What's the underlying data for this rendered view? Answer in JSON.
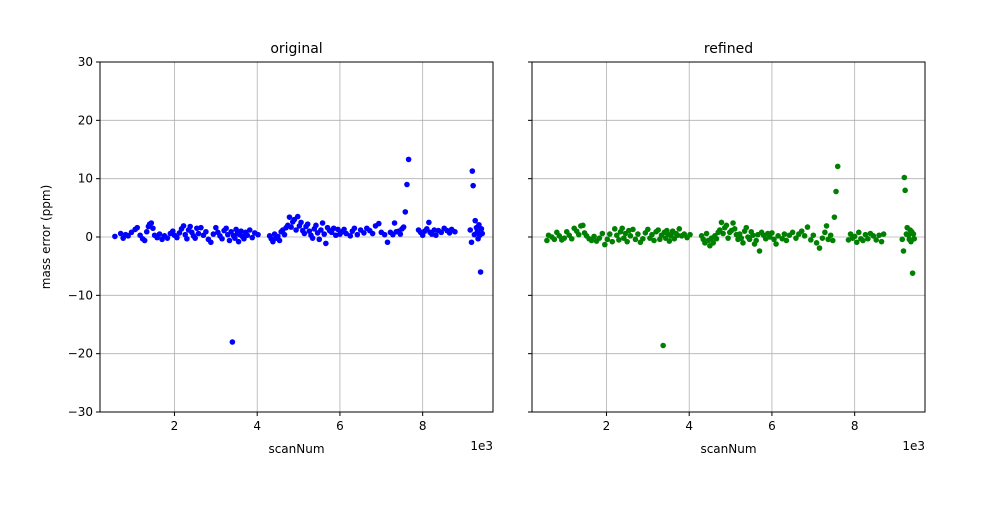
{
  "chart_data": [
    {
      "type": "scatter",
      "title": "original",
      "xlabel": "scanNum",
      "ylabel": "mass error (ppm)",
      "x_offset_text": "1e3",
      "xlim": [
        200,
        9700
      ],
      "ylim": [
        -30,
        30
      ],
      "xticks": [
        2000,
        4000,
        6000,
        8000
      ],
      "xtick_labels": [
        "2",
        "4",
        "6",
        "8"
      ],
      "yticks": [
        -30,
        -20,
        -10,
        0,
        10,
        20,
        30
      ],
      "ytick_labels": [
        "−30",
        "−20",
        "−10",
        "0",
        "10",
        "20",
        "30"
      ],
      "grid": true,
      "color": "#0000ff",
      "points": [
        [
          560,
          0.1
        ],
        [
          700,
          0.6
        ],
        [
          760,
          -0.2
        ],
        [
          820,
          0.4
        ],
        [
          880,
          0.2
        ],
        [
          960,
          0.8
        ],
        [
          1050,
          1.3
        ],
        [
          1100,
          1.6
        ],
        [
          1170,
          0.3
        ],
        [
          1230,
          -0.3
        ],
        [
          1280,
          -0.6
        ],
        [
          1330,
          0.9
        ],
        [
          1370,
          1.8
        ],
        [
          1400,
          2.2
        ],
        [
          1440,
          2.4
        ],
        [
          1480,
          1.5
        ],
        [
          1520,
          0.3
        ],
        [
          1580,
          -0.1
        ],
        [
          1640,
          0.5
        ],
        [
          1700,
          -0.4
        ],
        [
          1760,
          0.2
        ],
        [
          1830,
          -0.2
        ],
        [
          1900,
          0.6
        ],
        [
          1960,
          1.0
        ],
        [
          2000,
          0.3
        ],
        [
          2060,
          -0.1
        ],
        [
          2120,
          0.7
        ],
        [
          2170,
          1.4
        ],
        [
          2220,
          1.9
        ],
        [
          2260,
          0.4
        ],
        [
          2300,
          -0.3
        ],
        [
          2340,
          1.2
        ],
        [
          2380,
          1.8
        ],
        [
          2420,
          0.8
        ],
        [
          2460,
          0.2
        ],
        [
          2500,
          -0.2
        ],
        [
          2540,
          1.5
        ],
        [
          2580,
          0.6
        ],
        [
          2640,
          1.6
        ],
        [
          2700,
          0.3
        ],
        [
          2760,
          0.9
        ],
        [
          2820,
          -0.4
        ],
        [
          2880,
          -0.9
        ],
        [
          2940,
          0.5
        ],
        [
          3000,
          1.6
        ],
        [
          3050,
          0.8
        ],
        [
          3100,
          0.2
        ],
        [
          3150,
          -0.3
        ],
        [
          3200,
          1.1
        ],
        [
          3250,
          1.5
        ],
        [
          3290,
          0.4
        ],
        [
          3330,
          -0.6
        ],
        [
          3370,
          0.9
        ],
        [
          3400,
          -18
        ],
        [
          3430,
          0.2
        ],
        [
          3460,
          -0.2
        ],
        [
          3490,
          1.3
        ],
        [
          3520,
          0.6
        ],
        [
          3550,
          -0.8
        ],
        [
          3580,
          0.4
        ],
        [
          3610,
          1.0
        ],
        [
          3640,
          0.1
        ],
        [
          3680,
          -0.3
        ],
        [
          3720,
          0.8
        ],
        [
          3760,
          0.3
        ],
        [
          3820,
          1.2
        ],
        [
          3880,
          -0.1
        ],
        [
          3940,
          0.7
        ],
        [
          4020,
          0.4
        ],
        [
          4300,
          0.2
        ],
        [
          4340,
          -0.3
        ],
        [
          4380,
          -0.8
        ],
        [
          4420,
          0.5
        ],
        [
          4460,
          -0.2
        ],
        [
          4500,
          0.1
        ],
        [
          4540,
          -0.6
        ],
        [
          4580,
          0.9
        ],
        [
          4620,
          1.2
        ],
        [
          4660,
          0.4
        ],
        [
          4700,
          1.6
        ],
        [
          4740,
          2.0
        ],
        [
          4780,
          3.4
        ],
        [
          4820,
          1.7
        ],
        [
          4860,
          2.6
        ],
        [
          4900,
          3.0
        ],
        [
          4940,
          1.2
        ],
        [
          4980,
          3.5
        ],
        [
          5020,
          1.9
        ],
        [
          5060,
          2.5
        ],
        [
          5100,
          1.1
        ],
        [
          5140,
          0.6
        ],
        [
          5180,
          1.8
        ],
        [
          5220,
          2.2
        ],
        [
          5260,
          1.0
        ],
        [
          5300,
          0.3
        ],
        [
          5340,
          -0.2
        ],
        [
          5380,
          1.4
        ],
        [
          5420,
          2.0
        ],
        [
          5460,
          0.7
        ],
        [
          5500,
          -0.4
        ],
        [
          5540,
          1.2
        ],
        [
          5580,
          2.4
        ],
        [
          5620,
          0.5
        ],
        [
          5660,
          -1.1
        ],
        [
          5700,
          1.6
        ],
        [
          5750,
          1.1
        ],
        [
          5800,
          0.8
        ],
        [
          5850,
          1.5
        ],
        [
          5900,
          0.3
        ],
        [
          5950,
          1.3
        ],
        [
          6000,
          0.5
        ],
        [
          6050,
          0.9
        ],
        [
          6100,
          1.3
        ],
        [
          6150,
          0.6
        ],
        [
          6250,
          0.2
        ],
        [
          6300,
          1.0
        ],
        [
          6350,
          1.5
        ],
        [
          6420,
          0.4
        ],
        [
          6500,
          1.2
        ],
        [
          6580,
          0.7
        ],
        [
          6650,
          1.5
        ],
        [
          6720,
          1.1
        ],
        [
          6790,
          0.6
        ],
        [
          6860,
          1.9
        ],
        [
          6940,
          2.3
        ],
        [
          7000,
          0.8
        ],
        [
          7080,
          0.4
        ],
        [
          7150,
          -0.9
        ],
        [
          7220,
          0.8
        ],
        [
          7280,
          0.4
        ],
        [
          7320,
          2.4
        ],
        [
          7360,
          0.9
        ],
        [
          7420,
          1.0
        ],
        [
          7460,
          0.5
        ],
        [
          7500,
          1.4
        ],
        [
          7540,
          1.7
        ],
        [
          7580,
          4.3
        ],
        [
          7620,
          9.0
        ],
        [
          7660,
          13.3
        ],
        [
          7900,
          1.2
        ],
        [
          7950,
          0.8
        ],
        [
          8000,
          0.3
        ],
        [
          8050,
          1.0
        ],
        [
          8100,
          1.4
        ],
        [
          8150,
          2.5
        ],
        [
          8180,
          0.8
        ],
        [
          8220,
          0.5
        ],
        [
          8280,
          1.2
        ],
        [
          8320,
          0.3
        ],
        [
          8380,
          1.1
        ],
        [
          8450,
          0.8
        ],
        [
          8520,
          1.5
        ],
        [
          8590,
          1.1
        ],
        [
          8650,
          0.7
        ],
        [
          8700,
          1.3
        ],
        [
          8780,
          0.9
        ],
        [
          9150,
          1.2
        ],
        [
          9180,
          -0.9
        ],
        [
          9200,
          11.3
        ],
        [
          9220,
          8.8
        ],
        [
          9250,
          0.4
        ],
        [
          9270,
          2.8
        ],
        [
          9300,
          1.6
        ],
        [
          9320,
          0.9
        ],
        [
          9340,
          -0.3
        ],
        [
          9360,
          2.1
        ],
        [
          9380,
          0.3
        ],
        [
          9400,
          -6.0
        ],
        [
          9420,
          1.4
        ],
        [
          9440,
          0.6
        ]
      ]
    },
    {
      "type": "scatter",
      "title": "refined",
      "xlabel": "scanNum",
      "ylabel": "",
      "x_offset_text": "1e3",
      "xlim": [
        200,
        9700
      ],
      "ylim": [
        -30,
        30
      ],
      "xticks": [
        2000,
        4000,
        6000,
        8000
      ],
      "xtick_labels": [
        "2",
        "4",
        "6",
        "8"
      ],
      "yticks": [
        -30,
        -20,
        -10,
        0,
        10,
        20,
        30
      ],
      "ytick_labels": [],
      "grid": true,
      "color": "#008000",
      "points": [
        [
          560,
          -0.6
        ],
        [
          600,
          0.3
        ],
        [
          680,
          0.0
        ],
        [
          740,
          -0.4
        ],
        [
          800,
          0.8
        ],
        [
          860,
          0.2
        ],
        [
          920,
          -0.5
        ],
        [
          980,
          -0.2
        ],
        [
          1040,
          0.9
        ],
        [
          1100,
          0.3
        ],
        [
          1160,
          -0.3
        ],
        [
          1220,
          1.5
        ],
        [
          1280,
          1.0
        ],
        [
          1330,
          0.4
        ],
        [
          1380,
          1.9
        ],
        [
          1430,
          2.0
        ],
        [
          1470,
          0.7
        ],
        [
          1520,
          0.2
        ],
        [
          1580,
          -0.3
        ],
        [
          1640,
          -0.6
        ],
        [
          1700,
          0.1
        ],
        [
          1760,
          -0.7
        ],
        [
          1830,
          -0.2
        ],
        [
          1900,
          0.6
        ],
        [
          1960,
          -1.3
        ],
        [
          2020,
          -0.4
        ],
        [
          2080,
          0.5
        ],
        [
          2140,
          -0.8
        ],
        [
          2200,
          1.4
        ],
        [
          2250,
          0.3
        ],
        [
          2300,
          -0.5
        ],
        [
          2340,
          0.9
        ],
        [
          2380,
          1.5
        ],
        [
          2420,
          -0.2
        ],
        [
          2460,
          0.6
        ],
        [
          2500,
          -0.8
        ],
        [
          2540,
          1.1
        ],
        [
          2580,
          0.2
        ],
        [
          2640,
          1.3
        ],
        [
          2700,
          -0.4
        ],
        [
          2760,
          0.5
        ],
        [
          2820,
          -0.9
        ],
        [
          2880,
          -0.3
        ],
        [
          2940,
          0.7
        ],
        [
          3000,
          1.3
        ],
        [
          3050,
          -0.2
        ],
        [
          3100,
          0.4
        ],
        [
          3150,
          -0.6
        ],
        [
          3200,
          0.9
        ],
        [
          3250,
          1.2
        ],
        [
          3290,
          -0.4
        ],
        [
          3330,
          0.3
        ],
        [
          3370,
          -18.6
        ],
        [
          3400,
          0.8
        ],
        [
          3430,
          -0.2
        ],
        [
          3460,
          1.1
        ],
        [
          3490,
          0.5
        ],
        [
          3520,
          -0.7
        ],
        [
          3560,
          0.2
        ],
        [
          3600,
          1.0
        ],
        [
          3640,
          -0.3
        ],
        [
          3680,
          0.6
        ],
        [
          3720,
          0.3
        ],
        [
          3760,
          1.4
        ],
        [
          3820,
          0.2
        ],
        [
          3880,
          0.5
        ],
        [
          3950,
          -0.1
        ],
        [
          4020,
          0.4
        ],
        [
          4300,
          0.2
        ],
        [
          4340,
          -0.4
        ],
        [
          4380,
          -1.0
        ],
        [
          4420,
          0.6
        ],
        [
          4460,
          -0.6
        ],
        [
          4500,
          -1.5
        ],
        [
          4540,
          -0.2
        ],
        [
          4580,
          -1.0
        ],
        [
          4620,
          0.2
        ],
        [
          4660,
          -0.3
        ],
        [
          4700,
          0.8
        ],
        [
          4740,
          1.2
        ],
        [
          4780,
          2.5
        ],
        [
          4820,
          0.6
        ],
        [
          4860,
          1.6
        ],
        [
          4900,
          2.0
        ],
        [
          4940,
          -0.2
        ],
        [
          4980,
          0.8
        ],
        [
          5020,
          1.1
        ],
        [
          5060,
          2.4
        ],
        [
          5100,
          1.4
        ],
        [
          5140,
          0.4
        ],
        [
          5180,
          -0.4
        ],
        [
          5220,
          0.5
        ],
        [
          5260,
          -0.2
        ],
        [
          5300,
          -1.0
        ],
        [
          5340,
          1.0
        ],
        [
          5380,
          1.6
        ],
        [
          5420,
          0.0
        ],
        [
          5460,
          -0.4
        ],
        [
          5500,
          0.9
        ],
        [
          5540,
          0.3
        ],
        [
          5580,
          -1.2
        ],
        [
          5620,
          -0.6
        ],
        [
          5660,
          0.4
        ],
        [
          5700,
          -2.4
        ],
        [
          5750,
          0.8
        ],
        [
          5800,
          0.3
        ],
        [
          5850,
          -0.3
        ],
        [
          5900,
          0.6
        ],
        [
          5950,
          0.0
        ],
        [
          6000,
          0.7
        ],
        [
          6050,
          -0.4
        ],
        [
          6100,
          -1.2
        ],
        [
          6150,
          0.2
        ],
        [
          6250,
          -0.3
        ],
        [
          6300,
          0.5
        ],
        [
          6350,
          -0.6
        ],
        [
          6420,
          0.3
        ],
        [
          6500,
          0.8
        ],
        [
          6580,
          -0.2
        ],
        [
          6650,
          0.5
        ],
        [
          6720,
          1.0
        ],
        [
          6790,
          0.2
        ],
        [
          6860,
          1.7
        ],
        [
          6940,
          -0.5
        ],
        [
          7000,
          0.3
        ],
        [
          7080,
          -1.0
        ],
        [
          7150,
          -1.9
        ],
        [
          7220,
          -0.2
        ],
        [
          7280,
          0.8
        ],
        [
          7320,
          1.9
        ],
        [
          7360,
          -0.4
        ],
        [
          7420,
          0.3
        ],
        [
          7470,
          -0.6
        ],
        [
          7510,
          3.4
        ],
        [
          7550,
          7.8
        ],
        [
          7590,
          12.1
        ],
        [
          7850,
          -0.5
        ],
        [
          7900,
          0.5
        ],
        [
          7950,
          -0.2
        ],
        [
          8000,
          0.1
        ],
        [
          8050,
          -0.9
        ],
        [
          8100,
          0.8
        ],
        [
          8150,
          -0.3
        ],
        [
          8200,
          -0.6
        ],
        [
          8260,
          0.4
        ],
        [
          8320,
          -0.3
        ],
        [
          8380,
          0.6
        ],
        [
          8450,
          0.2
        ],
        [
          8520,
          -0.5
        ],
        [
          8590,
          0.3
        ],
        [
          8650,
          -0.8
        ],
        [
          8700,
          0.5
        ],
        [
          9150,
          -0.4
        ],
        [
          9180,
          -2.4
        ],
        [
          9200,
          10.2
        ],
        [
          9220,
          8.0
        ],
        [
          9250,
          0.5
        ],
        [
          9270,
          1.6
        ],
        [
          9300,
          0.3
        ],
        [
          9320,
          -0.4
        ],
        [
          9340,
          1.2
        ],
        [
          9360,
          -0.8
        ],
        [
          9380,
          0.9
        ],
        [
          9400,
          -6.2
        ],
        [
          9420,
          0.5
        ],
        [
          9440,
          -0.3
        ]
      ]
    }
  ]
}
